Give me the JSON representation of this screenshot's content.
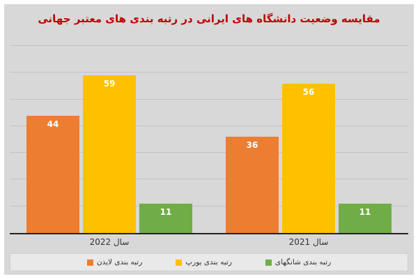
{
  "title": "مقایسه وضعیت دانشگاه های ایرانی در رتبه بندی های معتبر جهانی",
  "title_color": "#c00000",
  "chart_data": {
    "type": "bar",
    "categories": [
      "سال 2022",
      "سال 2021"
    ],
    "series": [
      {
        "name": "رتبه بندی لایدن",
        "color": "#ED7D31",
        "values": [
          44,
          36
        ]
      },
      {
        "name": "رتبه بندی یورپ",
        "color": "#FFC000",
        "values": [
          59,
          56
        ]
      },
      {
        "name": "رتبه بندی شانگهای",
        "color": "#70AD47",
        "values": [
          11,
          11
        ]
      }
    ],
    "ylim": [
      0,
      70
    ],
    "grid_step": 10,
    "grid": true,
    "legend_position": "bottom",
    "value_labels": true,
    "value_label_color": "#ffffff"
  }
}
